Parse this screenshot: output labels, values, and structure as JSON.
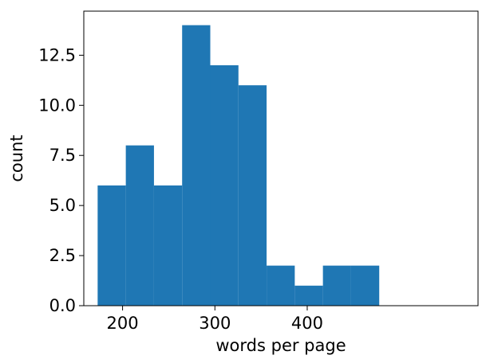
{
  "chart_data": {
    "type": "bar",
    "subtype": "histogram",
    "xlabel": "words per page",
    "ylabel": "count",
    "xlim": [
      158,
      585
    ],
    "ylim": [
      0,
      14.7
    ],
    "bins": [
      {
        "start": 173,
        "end": 203.5,
        "count": 6
      },
      {
        "start": 203.5,
        "end": 234,
        "count": 8
      },
      {
        "start": 234,
        "end": 264.5,
        "count": 6
      },
      {
        "start": 264.5,
        "end": 295,
        "count": 14
      },
      {
        "start": 295,
        "end": 325.5,
        "count": 12
      },
      {
        "start": 325.5,
        "end": 356,
        "count": 11
      },
      {
        "start": 356,
        "end": 386.5,
        "count": 2
      },
      {
        "start": 386.5,
        "end": 417,
        "count": 1
      },
      {
        "start": 417,
        "end": 447.5,
        "count": 2
      },
      {
        "start": 447.5,
        "end": 478,
        "count": 2
      }
    ],
    "xticks": [
      {
        "value": 200,
        "label": "200"
      },
      {
        "value": 300,
        "label": "300"
      },
      {
        "value": 400,
        "label": "400"
      }
    ],
    "yticks": [
      {
        "value": 0.0,
        "label": "0.0"
      },
      {
        "value": 2.5,
        "label": "2.5"
      },
      {
        "value": 5.0,
        "label": "5.0"
      },
      {
        "value": 7.5,
        "label": "7.5"
      },
      {
        "value": 10.0,
        "label": "10.0"
      },
      {
        "value": 12.5,
        "label": "12.5"
      }
    ],
    "grid": false,
    "bar_color": "#1f77b4"
  }
}
